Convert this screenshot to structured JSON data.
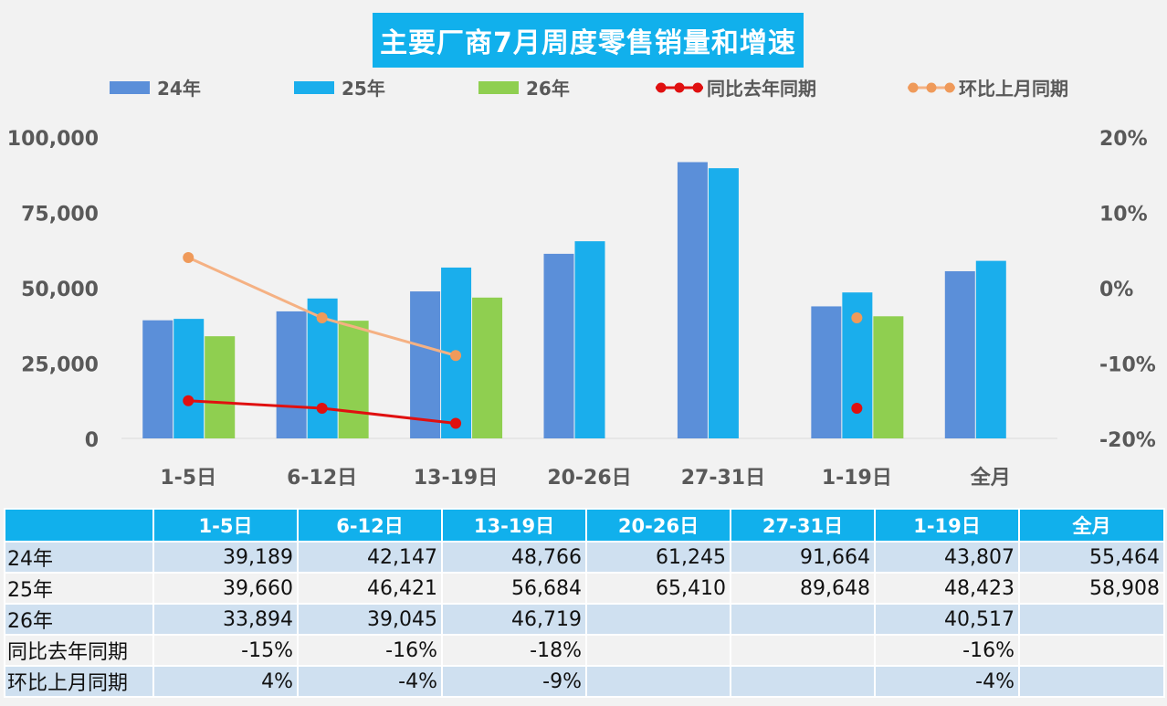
{
  "chart_data": {
    "type": "bar",
    "title": "主要厂商7月周度零售销量和增速",
    "categories": [
      "1-5日",
      "6-12日",
      "13-19日",
      "20-26日",
      "27-31日",
      "1-19日",
      "全月"
    ],
    "series": [
      {
        "name": "24年",
        "kind": "bar",
        "axis": "left",
        "color": "#5b8fd9",
        "values": [
          39189,
          42147,
          48766,
          61245,
          91664,
          43807,
          55464
        ]
      },
      {
        "name": "25年",
        "kind": "bar",
        "axis": "left",
        "color": "#1aaeec",
        "values": [
          39660,
          46421,
          56684,
          65410,
          89648,
          48423,
          58908
        ]
      },
      {
        "name": "26年",
        "kind": "bar",
        "axis": "left",
        "color": "#8fcf50",
        "values": [
          33894,
          39045,
          46719,
          null,
          null,
          40517,
          null
        ]
      },
      {
        "name": "同比去年同期",
        "kind": "line",
        "axis": "right",
        "color": "#e01010",
        "values": [
          -15,
          -16,
          -18,
          null,
          null,
          -16,
          null
        ]
      },
      {
        "name": "环比上月同期",
        "kind": "line",
        "axis": "right",
        "color": "#f5b183",
        "marker_color": "#ef9a5a",
        "values": [
          4,
          -4,
          -9,
          null,
          null,
          -4,
          null
        ]
      }
    ],
    "y_left": {
      "min": 0,
      "max": 100000,
      "ticks": [
        0,
        25000,
        50000,
        75000,
        100000
      ],
      "tick_labels": [
        "0",
        "25,000",
        "50,000",
        "75,000",
        "100,000"
      ]
    },
    "y_right": {
      "min": -20,
      "max": 20,
      "ticks": [
        -20,
        -10,
        0,
        10,
        20
      ],
      "tick_labels": [
        "-20%",
        "-10%",
        "0%",
        "10%",
        "20%"
      ]
    },
    "grid": false,
    "legend_position": "top"
  },
  "table": {
    "header": [
      "",
      "1-5日",
      "6-12日",
      "13-19日",
      "20-26日",
      "27-31日",
      "1-19日",
      "全月"
    ],
    "rows": [
      {
        "label": "24年",
        "cells": [
          "39,189",
          "42,147",
          "48,766",
          "61,245",
          "91,664",
          "43,807",
          "55,464"
        ]
      },
      {
        "label": "25年",
        "cells": [
          "39,660",
          "46,421",
          "56,684",
          "65,410",
          "89,648",
          "48,423",
          "58,908"
        ]
      },
      {
        "label": "26年",
        "cells": [
          "33,894",
          "39,045",
          "46,719",
          "",
          "",
          "40,517",
          ""
        ]
      },
      {
        "label": "同比去年同期",
        "cells": [
          "-15%",
          "-16%",
          "-18%",
          "",
          "",
          "-16%",
          ""
        ]
      },
      {
        "label": "环比上月同期",
        "cells": [
          "4%",
          "-4%",
          "-9%",
          "",
          "",
          "-4%",
          ""
        ]
      }
    ]
  }
}
